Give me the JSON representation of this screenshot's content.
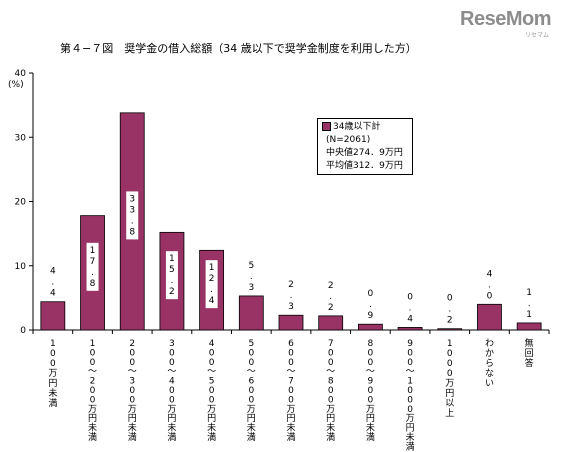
{
  "logo": {
    "text": "ReseMom",
    "sub": "リセマム"
  },
  "title": "第４−７図　奨学金の借入総額（34 歳以下で奨学金制度を利用した方）",
  "unit": "(%)",
  "legend": {
    "series_name": "34歳以下計",
    "lines": [
      "(N=2061)",
      "中央値274．9万円",
      "平均値312．9万円"
    ]
  },
  "colors": {
    "bar": "#993366",
    "axis": "#000000"
  },
  "chart_data": {
    "type": "bar",
    "title": "第４−７図　奨学金の借入総額（34 歳以下で奨学金制度を利用した方）",
    "ylabel": "(%)",
    "ylim": [
      0,
      40
    ],
    "yticks": [
      0,
      10,
      20,
      30,
      40
    ],
    "grid": false,
    "legend_position": "upper-right inside",
    "categories": [
      "100万円未満",
      "100〜200万円未満",
      "200〜300万円未満",
      "300〜400万円未満",
      "400〜500万円未満",
      "500〜600万円未満",
      "600〜700万円未満",
      "700〜800万円未満",
      "800〜900万円未満",
      "900〜1000万円未満",
      "1000万円以上",
      "わからない",
      "無回答"
    ],
    "series": [
      {
        "name": "34歳以下計",
        "values": [
          4.4,
          17.8,
          33.8,
          15.2,
          12.4,
          5.3,
          2.3,
          2.2,
          0.9,
          0.4,
          0.2,
          4.0,
          1.1
        ]
      }
    ],
    "data_labels": [
      "4.4",
      "17.8",
      "33.8",
      "15.2",
      "12.4",
      "5.3",
      "2.3",
      "2.2",
      "0.9",
      "0.4",
      "0.2",
      "4.0",
      "1.1"
    ]
  }
}
